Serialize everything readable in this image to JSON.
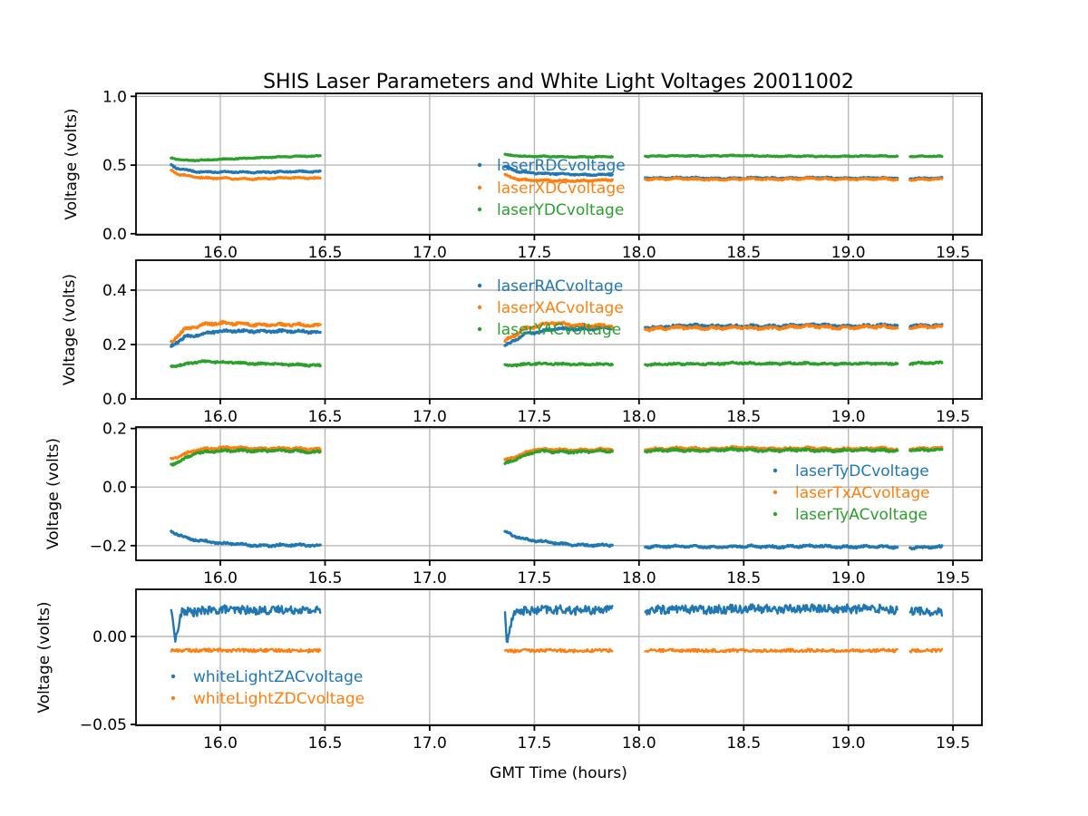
{
  "figure": {
    "title": "SHIS Laser Parameters and White Light Voltages 20011002",
    "xlabel": "GMT Time (hours)",
    "background": "#ffffff",
    "colors": {
      "blue": "#1f77b4",
      "orange": "#ff7f0e",
      "green": "#2ca02c",
      "grid": "#b8b8b8",
      "spine": "#000000",
      "text": "#000000"
    }
  },
  "time_segments": [
    [
      15.765,
      16.48
    ],
    [
      17.36,
      17.875
    ],
    [
      18.03,
      19.235
    ],
    [
      19.295,
      19.45
    ]
  ],
  "chart_data": [
    {
      "type": "scatter",
      "ylabel": "Voltage (volts)",
      "xlim": [
        15.597,
        19.638
      ],
      "ylim": [
        -0.008,
        1.022
      ],
      "xticks": [
        16.0,
        16.5,
        17.0,
        17.5,
        18.0,
        18.5,
        19.0,
        19.5
      ],
      "xtick_labels": [
        "16.0",
        "16.5",
        "17.0",
        "17.5",
        "18.0",
        "18.5",
        "19.0",
        "19.5"
      ],
      "yticks": [
        0.0,
        0.5,
        1.0
      ],
      "ytick_labels": [
        "0.0",
        "0.5",
        "1.0"
      ],
      "grid": true,
      "legend": {
        "position": "center",
        "marker_x": 529,
        "text_x": 548,
        "rows_y": [
          183,
          208,
          232
        ],
        "entries": [
          {
            "label": "laserRDCvoltage",
            "color": "#1f77b4"
          },
          {
            "label": "laserXDCvoltage",
            "color": "#ff7f0e"
          },
          {
            "label": "laserYDCvoltage",
            "color": "#2ca02c"
          }
        ]
      },
      "series": [
        {
          "name": "laserRDCvoltage",
          "color": "#1f77b4",
          "wiggle": 0.005,
          "noise": 0.004,
          "profile": [
            [
              15.765,
              0.497
            ],
            [
              15.8,
              0.472
            ],
            [
              15.9,
              0.452
            ],
            [
              16.05,
              0.447
            ],
            [
              16.25,
              0.45
            ],
            [
              16.48,
              0.453
            ],
            [
              17.36,
              0.49
            ],
            [
              17.42,
              0.455
            ],
            [
              17.55,
              0.436
            ],
            [
              17.7,
              0.432
            ],
            [
              17.875,
              0.43
            ],
            [
              18.03,
              0.408
            ],
            [
              18.4,
              0.404
            ],
            [
              18.8,
              0.407
            ],
            [
              19.1,
              0.405
            ],
            [
              19.45,
              0.404
            ]
          ]
        },
        {
          "name": "laserXDCvoltage",
          "color": "#ff7f0e",
          "wiggle": 0.006,
          "noise": 0.004,
          "profile": [
            [
              15.765,
              0.463
            ],
            [
              15.8,
              0.432
            ],
            [
              15.92,
              0.407
            ],
            [
              16.08,
              0.4
            ],
            [
              16.3,
              0.404
            ],
            [
              16.48,
              0.407
            ],
            [
              17.36,
              0.428
            ],
            [
              17.43,
              0.395
            ],
            [
              17.58,
              0.385
            ],
            [
              17.875,
              0.39
            ],
            [
              18.03,
              0.4
            ],
            [
              18.4,
              0.396
            ],
            [
              18.8,
              0.4
            ],
            [
              19.1,
              0.398
            ],
            [
              19.45,
              0.396
            ]
          ]
        },
        {
          "name": "laserYDCvoltage",
          "color": "#2ca02c",
          "wiggle": 0.003,
          "noise": 0.003,
          "profile": [
            [
              15.765,
              0.552
            ],
            [
              15.82,
              0.535
            ],
            [
              15.95,
              0.537
            ],
            [
              16.15,
              0.552
            ],
            [
              16.35,
              0.562
            ],
            [
              16.48,
              0.568
            ],
            [
              17.36,
              0.578
            ],
            [
              17.45,
              0.564
            ],
            [
              17.65,
              0.56
            ],
            [
              17.875,
              0.56
            ],
            [
              18.03,
              0.565
            ],
            [
              18.45,
              0.568
            ],
            [
              18.85,
              0.563
            ],
            [
              19.15,
              0.566
            ],
            [
              19.45,
              0.562
            ]
          ]
        }
      ]
    },
    {
      "type": "scatter",
      "ylabel": "Voltage (volts)",
      "xlim": [
        15.597,
        19.638
      ],
      "ylim": [
        0.0,
        0.51
      ],
      "xticks": [
        16.0,
        16.5,
        17.0,
        17.5,
        18.0,
        18.5,
        19.0,
        19.5
      ],
      "xtick_labels": [
        "16.0",
        "16.5",
        "17.0",
        "17.5",
        "18.0",
        "18.5",
        "19.0",
        "19.5"
      ],
      "yticks": [
        0.0,
        0.2,
        0.4
      ],
      "ytick_labels": [
        "0.0",
        "0.2",
        "0.4"
      ],
      "grid": true,
      "legend": {
        "position": "center",
        "marker_x": 529,
        "text_x": 548,
        "rows_y": [
          316,
          340,
          364
        ],
        "entries": [
          {
            "label": "laserRACvoltage",
            "color": "#1f77b4"
          },
          {
            "label": "laserXACvoltage",
            "color": "#ff7f0e"
          },
          {
            "label": "laserYACvoltage",
            "color": "#2ca02c"
          }
        ]
      },
      "series": [
        {
          "name": "laserRACvoltage",
          "color": "#1f77b4",
          "wiggle": 0.004,
          "noise": 0.004,
          "profile": [
            [
              15.765,
              0.192
            ],
            [
              15.83,
              0.228
            ],
            [
              15.95,
              0.246
            ],
            [
              16.15,
              0.25
            ],
            [
              16.48,
              0.246
            ],
            [
              17.36,
              0.196
            ],
            [
              17.45,
              0.238
            ],
            [
              17.6,
              0.256
            ],
            [
              17.875,
              0.262
            ],
            [
              18.03,
              0.264
            ],
            [
              18.3,
              0.27
            ],
            [
              18.55,
              0.266
            ],
            [
              18.8,
              0.272
            ],
            [
              19.05,
              0.268
            ],
            [
              19.3,
              0.272
            ],
            [
              19.45,
              0.268
            ]
          ]
        },
        {
          "name": "laserXACvoltage",
          "color": "#ff7f0e",
          "wiggle": 0.005,
          "noise": 0.004,
          "profile": [
            [
              15.765,
              0.21
            ],
            [
              15.83,
              0.258
            ],
            [
              15.93,
              0.276
            ],
            [
              16.1,
              0.277
            ],
            [
              16.3,
              0.271
            ],
            [
              16.48,
              0.272
            ],
            [
              17.36,
              0.214
            ],
            [
              17.45,
              0.258
            ],
            [
              17.58,
              0.278
            ],
            [
              17.75,
              0.27
            ],
            [
              17.875,
              0.266
            ],
            [
              18.03,
              0.258
            ],
            [
              18.3,
              0.263
            ],
            [
              18.55,
              0.26
            ],
            [
              18.8,
              0.266
            ],
            [
              19.05,
              0.262
            ],
            [
              19.3,
              0.267
            ],
            [
              19.45,
              0.263
            ]
          ]
        },
        {
          "name": "laserYACvoltage",
          "color": "#2ca02c",
          "wiggle": 0.0025,
          "noise": 0.003,
          "profile": [
            [
              15.765,
              0.12
            ],
            [
              15.9,
              0.137
            ],
            [
              16.08,
              0.133
            ],
            [
              16.3,
              0.126
            ],
            [
              16.48,
              0.124
            ],
            [
              17.36,
              0.124
            ],
            [
              17.5,
              0.129
            ],
            [
              17.875,
              0.127
            ],
            [
              18.03,
              0.127
            ],
            [
              18.5,
              0.131
            ],
            [
              19.0,
              0.129
            ],
            [
              19.45,
              0.132
            ]
          ]
        }
      ]
    },
    {
      "type": "scatter",
      "ylabel": "Voltage (volts)",
      "xlim": [
        15.597,
        19.638
      ],
      "ylim": [
        -0.25,
        0.205
      ],
      "xticks": [
        16.0,
        16.5,
        17.0,
        17.5,
        18.0,
        18.5,
        19.0,
        19.5
      ],
      "xtick_labels": [
        "16.0",
        "16.5",
        "17.0",
        "17.5",
        "18.0",
        "18.5",
        "19.0",
        "19.5"
      ],
      "yticks": [
        -0.2,
        0.0,
        0.2
      ],
      "ytick_labels": [
        "−0.2",
        "0.0",
        "0.2"
      ],
      "grid": true,
      "legend": {
        "position": "center right",
        "marker_x": 855,
        "text_x": 877,
        "rows_y": [
          520,
          544,
          568
        ],
        "entries": [
          {
            "label": "laserTyDCvoltage",
            "color": "#1f77b4"
          },
          {
            "label": "laserTxACvoltage",
            "color": "#ff7f0e"
          },
          {
            "label": "laserTyACvoltage",
            "color": "#2ca02c"
          }
        ]
      },
      "series": [
        {
          "name": "laserTyDCvoltage",
          "color": "#1f77b4",
          "wiggle": 0.0035,
          "noise": 0.003,
          "profile": [
            [
              15.765,
              -0.153
            ],
            [
              15.85,
              -0.175
            ],
            [
              16.0,
              -0.193
            ],
            [
              16.2,
              -0.199
            ],
            [
              16.48,
              -0.199
            ],
            [
              17.36,
              -0.153
            ],
            [
              17.45,
              -0.177
            ],
            [
              17.62,
              -0.194
            ],
            [
              17.875,
              -0.2
            ],
            [
              18.03,
              -0.202
            ],
            [
              18.4,
              -0.204
            ],
            [
              18.8,
              -0.202
            ],
            [
              19.1,
              -0.204
            ],
            [
              19.45,
              -0.206
            ]
          ]
        },
        {
          "name": "laserTxACvoltage",
          "color": "#ff7f0e",
          "wiggle": 0.0035,
          "noise": 0.003,
          "profile": [
            [
              15.765,
              0.096
            ],
            [
              15.88,
              0.128
            ],
            [
              16.05,
              0.134
            ],
            [
              16.3,
              0.131
            ],
            [
              16.48,
              0.13
            ],
            [
              17.36,
              0.094
            ],
            [
              17.5,
              0.127
            ],
            [
              17.875,
              0.128
            ],
            [
              18.03,
              0.13
            ],
            [
              18.45,
              0.133
            ],
            [
              18.85,
              0.131
            ],
            [
              19.45,
              0.131
            ]
          ]
        },
        {
          "name": "laserTyACvoltage",
          "color": "#2ca02c",
          "wiggle": 0.0035,
          "noise": 0.003,
          "profile": [
            [
              15.765,
              0.076
            ],
            [
              15.88,
              0.116
            ],
            [
              16.08,
              0.126
            ],
            [
              16.3,
              0.123
            ],
            [
              16.48,
              0.121
            ],
            [
              17.36,
              0.082
            ],
            [
              17.5,
              0.12
            ],
            [
              17.875,
              0.122
            ],
            [
              18.03,
              0.124
            ],
            [
              18.45,
              0.127
            ],
            [
              18.85,
              0.125
            ],
            [
              19.45,
              0.126
            ]
          ]
        }
      ]
    },
    {
      "type": "scatter",
      "ylabel": "Voltage (volts)",
      "xlim": [
        15.597,
        19.638
      ],
      "ylim": [
        -0.0505,
        0.0268
      ],
      "xticks": [
        16.0,
        16.5,
        17.0,
        17.5,
        18.0,
        18.5,
        19.0,
        19.5
      ],
      "xtick_labels": [
        "16.0",
        "16.5",
        "17.0",
        "17.5",
        "18.0",
        "18.5",
        "19.0",
        "19.5"
      ],
      "yticks": [
        -0.05,
        0.0
      ],
      "ytick_labels": [
        "−0.05",
        "0.00"
      ],
      "grid": true,
      "legend": {
        "position": "lower left",
        "marker_x": 191,
        "text_x": 213,
        "rows_y": [
          747,
          771
        ],
        "entries": [
          {
            "label": "whiteLightZACvoltage",
            "color": "#1f77b4"
          },
          {
            "label": "whiteLightZDCvoltage",
            "color": "#ff7f0e"
          }
        ]
      },
      "series": [
        {
          "name": "whiteLightZACvoltage",
          "color": "#1f77b4",
          "wiggle": 0.0006,
          "noise": 0.0024,
          "profile": [
            [
              15.765,
              0.0125
            ],
            [
              15.775,
              0.0115
            ],
            [
              15.782,
              -0.0025
            ],
            [
              15.795,
              0.003
            ],
            [
              15.815,
              0.014
            ],
            [
              16.0,
              0.015
            ],
            [
              16.48,
              0.015
            ],
            [
              17.36,
              0.012
            ],
            [
              17.368,
              -0.003
            ],
            [
              17.382,
              0.004
            ],
            [
              17.4,
              0.0145
            ],
            [
              17.6,
              0.015
            ],
            [
              17.875,
              0.0152
            ],
            [
              18.03,
              0.0152
            ],
            [
              18.5,
              0.0158
            ],
            [
              19.0,
              0.0158
            ],
            [
              19.235,
              0.0155
            ],
            [
              19.295,
              0.015
            ],
            [
              19.38,
              0.014
            ],
            [
              19.45,
              0.013
            ]
          ]
        },
        {
          "name": "whiteLightZDCvoltage",
          "color": "#ff7f0e",
          "wiggle": 0.0002,
          "noise": 0.0009,
          "profile": [
            [
              15.765,
              -0.0078
            ],
            [
              16.48,
              -0.008
            ],
            [
              17.36,
              -0.0081
            ],
            [
              17.875,
              -0.0079
            ],
            [
              18.03,
              -0.008
            ],
            [
              19.45,
              -0.008
            ]
          ]
        }
      ]
    }
  ]
}
